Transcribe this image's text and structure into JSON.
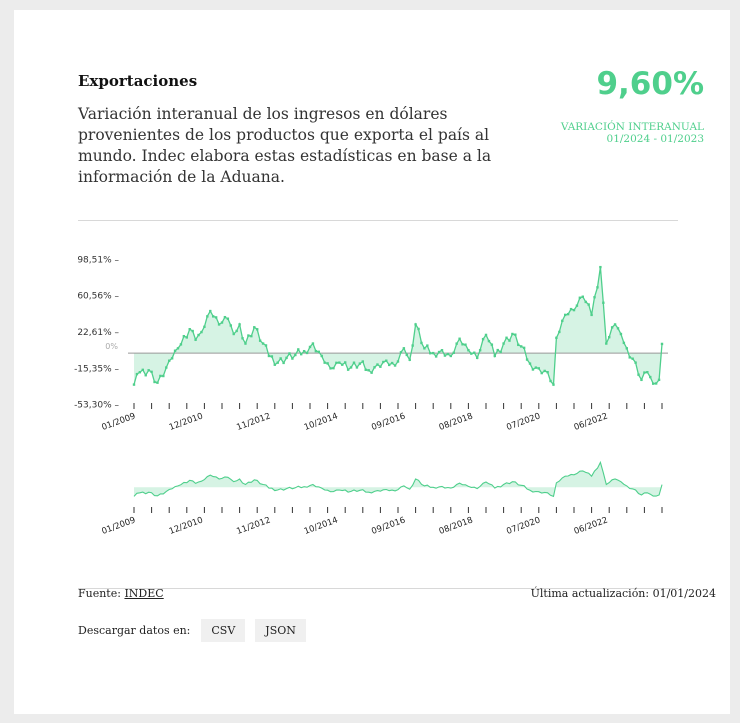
{
  "header": {
    "title": "Exportaciones",
    "description": "Variación interanual de los ingresos en dólares provenientes de los productos que exporta el país al mundo. Indec elabora estas estadísticas en base a la información de la Aduana.",
    "value": "9,60%",
    "value_label": "VARIACIÓN INTERANUAL 01/2024 - 01/2023"
  },
  "colors": {
    "accent": "#4fcf8c",
    "fill": "#d6f3e4",
    "zero_line": "#999999"
  },
  "chart_data": {
    "type": "area",
    "title": "",
    "xlabel": "",
    "ylabel": "",
    "y_ticks": [
      "98,51%",
      "60,56%",
      "22,61%",
      "-15,35%",
      "-53,30%"
    ],
    "y_tick_values": [
      98.51,
      60.56,
      22.61,
      -15.35,
      -53.3
    ],
    "zero_label": "0%",
    "ylim": [
      -53.3,
      98.51
    ],
    "x_ticks": [
      "01/2009",
      "12/2010",
      "11/2012",
      "10/2014",
      "09/2016",
      "08/2018",
      "07/2020",
      "06/2022"
    ],
    "x_range": [
      "01/2009",
      "01/2024"
    ],
    "keys": [
      [
        "2009-01",
        -33
      ],
      [
        "2009-03",
        -20
      ],
      [
        "2009-06",
        -18
      ],
      [
        "2009-09",
        -31
      ],
      [
        "2009-11",
        -24
      ],
      [
        "2010-01",
        -8
      ],
      [
        "2010-04",
        5
      ],
      [
        "2010-08",
        25
      ],
      [
        "2010-10",
        14
      ],
      [
        "2010-12",
        22
      ],
      [
        "2011-03",
        44
      ],
      [
        "2011-06",
        30
      ],
      [
        "2011-09",
        36
      ],
      [
        "2011-11",
        20
      ],
      [
        "2012-01",
        30
      ],
      [
        "2012-03",
        10
      ],
      [
        "2012-06",
        27
      ],
      [
        "2012-09",
        10
      ],
      [
        "2012-11",
        -3
      ],
      [
        "2013-02",
        -10
      ],
      [
        "2013-05",
        -5
      ],
      [
        "2013-08",
        -2
      ],
      [
        "2013-11",
        2
      ],
      [
        "2014-02",
        10
      ],
      [
        "2014-05",
        -3
      ],
      [
        "2014-08",
        -16
      ],
      [
        "2014-11",
        -10
      ],
      [
        "2015-03",
        -15
      ],
      [
        "2015-06",
        -11
      ],
      [
        "2015-09",
        -18
      ],
      [
        "2015-12",
        -12
      ],
      [
        "2016-03",
        -8
      ],
      [
        "2016-06",
        -13
      ],
      [
        "2016-09",
        5
      ],
      [
        "2016-11",
        -7
      ],
      [
        "2017-01",
        30
      ],
      [
        "2017-04",
        5
      ],
      [
        "2017-07",
        0
      ],
      [
        "2017-10",
        3
      ],
      [
        "2018-01",
        -3
      ],
      [
        "2018-04",
        15
      ],
      [
        "2018-07",
        3
      ],
      [
        "2018-10",
        -5
      ],
      [
        "2019-01",
        19
      ],
      [
        "2019-04",
        -3
      ],
      [
        "2019-07",
        10
      ],
      [
        "2019-10",
        20
      ],
      [
        "2020-01",
        7
      ],
      [
        "2020-04",
        -11
      ],
      [
        "2020-07",
        -16
      ],
      [
        "2020-10",
        -20
      ],
      [
        "2020-12",
        -33
      ],
      [
        "2021-01",
        16
      ],
      [
        "2021-04",
        40
      ],
      [
        "2021-07",
        45
      ],
      [
        "2021-10",
        59
      ],
      [
        "2022-01",
        40
      ],
      [
        "2022-04",
        90
      ],
      [
        "2022-06",
        10
      ],
      [
        "2022-09",
        30
      ],
      [
        "2022-11",
        20
      ],
      [
        "2023-01",
        5
      ],
      [
        "2023-04",
        -10
      ],
      [
        "2023-06",
        -28
      ],
      [
        "2023-08",
        -20
      ],
      [
        "2023-10",
        -32
      ],
      [
        "2023-12",
        -28
      ],
      [
        "2024-01",
        9.6
      ]
    ]
  },
  "footer": {
    "source_label": "Fuente: ",
    "source_link": "INDEC",
    "updated": "Última actualización: 01/01/2024",
    "download_label": "Descargar datos en:",
    "csv": "CSV",
    "json": "JSON"
  }
}
